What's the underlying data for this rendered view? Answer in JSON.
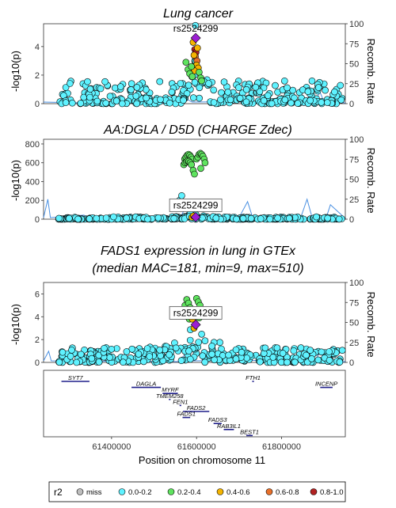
{
  "colors": {
    "r2_miss": "#bebebe",
    "r2_0_0_2": "#5ff2ff",
    "r2_0_2_0_4": "#5fe35f",
    "r2_0_4_0_6": "#f4b400",
    "r2_0_6_0_8": "#e8702a",
    "r2_0_8_1_0": "#b22222",
    "lead": "#9b1fd3",
    "recomb": "#4a90e2",
    "gene": "#1f1f8a",
    "panel_border": "#333333"
  },
  "lead_snp": "rs2524299",
  "legend": {
    "title": "r2",
    "items": [
      {
        "label": "miss",
        "color_key": "r2_miss"
      },
      {
        "label": "0.0-0.2",
        "color_key": "r2_0_0_2"
      },
      {
        "label": "0.2-0.4",
        "color_key": "r2_0_2_0_4"
      },
      {
        "label": "0.4-0.6",
        "color_key": "r2_0_4_0_6"
      },
      {
        "label": "0.6-0.8",
        "color_key": "r2_0_6_0_8"
      },
      {
        "label": "0.8-1.0",
        "color_key": "r2_0_8_1_0"
      }
    ]
  },
  "xaxis": {
    "label": "Position on chromosome 11",
    "range": [
      61240000,
      61950000
    ],
    "ticks": [
      61400000,
      61600000,
      61800000
    ],
    "tick_labels": [
      "61400000",
      "61600000",
      "61800000"
    ]
  },
  "genes": [
    {
      "name": "SYT7",
      "start": 61282000,
      "end": 61348000,
      "row": 0
    },
    {
      "name": "FTH1",
      "start": 61731000,
      "end": 61735000,
      "row": 0
    },
    {
      "name": "DAGLA",
      "start": 61447000,
      "end": 61516000,
      "row": 1
    },
    {
      "name": "INCENP",
      "start": 61891000,
      "end": 61920000,
      "row": 1
    },
    {
      "name": "MYRF",
      "start": 61520000,
      "end": 61556000,
      "row": 2
    },
    {
      "name": "TMEM258",
      "start": 61535000,
      "end": 61538000,
      "row": 3
    },
    {
      "name": "FEN1",
      "start": 61560000,
      "end": 61564000,
      "row": 4
    },
    {
      "name": "FADS2",
      "start": 61568000,
      "end": 61630000,
      "row": 5
    },
    {
      "name": "FADS1",
      "start": 61567000,
      "end": 61585000,
      "row": 6
    },
    {
      "name": "FADS3",
      "start": 61640000,
      "end": 61659000,
      "row": 7
    },
    {
      "name": "RAB3IL1",
      "start": 61664000,
      "end": 61688000,
      "row": 8
    },
    {
      "name": "BEST1",
      "start": 61717000,
      "end": 61732000,
      "row": 9
    }
  ],
  "chart_data": [
    {
      "type": "scatter",
      "title": "Lung cancer",
      "subtitle": "",
      "ylabel": "-log10(p)",
      "y2label": "Recomb. Rate",
      "ylim": [
        0,
        5.6
      ],
      "yticks": [
        0,
        2,
        4
      ],
      "y2lim": [
        0,
        100
      ],
      "y2ticks": [
        0,
        25,
        50,
        75,
        100
      ],
      "lead": {
        "name": "rs2524299",
        "x": 61598000,
        "y": 4.6
      },
      "label_pos": "above",
      "peak": {
        "hx": 61598000,
        "peak": 4.4,
        "width": 9000,
        "base_max": 1.6,
        "tail": 2.0
      },
      "groups": [
        {
          "r2": "r2_0_8_1_0",
          "points": [
            [
              61596000,
              3.8
            ],
            [
              61598500,
              3.6
            ]
          ]
        },
        {
          "r2": "r2_0_6_0_8",
          "points": [
            [
              61597000,
              3.3
            ],
            [
              61601000,
              3.0
            ]
          ]
        },
        {
          "r2": "r2_0_4_0_6",
          "points": [
            [
              61592000,
              4.3
            ],
            [
              61602000,
              3.9
            ],
            [
              61594000,
              3.4
            ],
            [
              61600000,
              2.7
            ],
            [
              61604000,
              2.5
            ],
            [
              61595000,
              2.3
            ]
          ]
        },
        {
          "r2": "r2_0_2_0_4",
          "points": [
            [
              61575000,
              2.9
            ],
            [
              61580000,
              2.4
            ],
            [
              61584000,
              2.1
            ],
            [
              61588000,
              2.6
            ],
            [
              61590000,
              1.9
            ],
            [
              61606000,
              2.2
            ],
            [
              61610000,
              1.8
            ],
            [
              61612000,
              1.6
            ]
          ]
        }
      ],
      "recomb": [
        [
          61240000,
          2
        ],
        [
          61330000,
          1
        ],
        [
          61340000,
          8
        ],
        [
          61350000,
          1
        ],
        [
          61560000,
          1
        ],
        [
          61575000,
          6
        ],
        [
          61590000,
          2
        ],
        [
          61880000,
          3
        ],
        [
          61890000,
          15
        ],
        [
          61900000,
          2
        ],
        [
          61950000,
          1
        ]
      ]
    },
    {
      "type": "scatter",
      "title": "AA:DGLA / D5D (CHARGE Zdec)",
      "subtitle": "",
      "ylabel": "-log10(p)",
      "y2label": "Recomb. Rate",
      "ylim": [
        0,
        850
      ],
      "yticks": [
        0,
        200,
        400,
        600,
        800
      ],
      "y2lim": [
        0,
        100
      ],
      "y2ticks": [
        0,
        25,
        50,
        75,
        100
      ],
      "lead": {
        "name": "rs2524299",
        "x": 61598000,
        "y": 22
      },
      "label_pos": "box",
      "peak": {
        "hx": 61598000,
        "peak": 120,
        "width": 15000,
        "base_max": 25,
        "tail": 3.0
      },
      "groups": [
        {
          "r2": "r2_0_2_0_4",
          "points": [
            [
              61572000,
              640
            ],
            [
              61575000,
              660
            ],
            [
              61578000,
              680
            ],
            [
              61581000,
              690
            ],
            [
              61584000,
              680
            ],
            [
              61587000,
              660
            ],
            [
              61590000,
              640
            ],
            [
              61570000,
              580
            ],
            [
              61573000,
              600
            ],
            [
              61576000,
              610
            ],
            [
              61579000,
              620
            ],
            [
              61582000,
              615
            ],
            [
              61585000,
              600
            ],
            [
              61588000,
              580
            ],
            [
              61600000,
              640
            ],
            [
              61603000,
              660
            ],
            [
              61606000,
              690
            ],
            [
              61609000,
              700
            ],
            [
              61612000,
              690
            ],
            [
              61615000,
              670
            ],
            [
              61618000,
              640
            ],
            [
              61620000,
              600
            ],
            [
              61592000,
              520
            ],
            [
              61595000,
              480
            ],
            [
              61610000,
              540
            ]
          ]
        },
        {
          "r2": "r2_0_4_0_6",
          "points": [
            [
              61589000,
              20
            ],
            [
              61593000,
              35
            ]
          ]
        },
        {
          "r2": "r2_0_0_2",
          "points": [
            [
              61560000,
              200
            ],
            [
              61565000,
              250
            ],
            [
              61622000,
              180
            ],
            [
              61630000,
              120
            ]
          ]
        }
      ],
      "recomb": [
        [
          61240000,
          2
        ],
        [
          61250000,
          25
        ],
        [
          61256000,
          2
        ],
        [
          61335000,
          5
        ],
        [
          61345000,
          2
        ],
        [
          61560000,
          1
        ],
        [
          61575000,
          15
        ],
        [
          61590000,
          2
        ],
        [
          61700000,
          2
        ],
        [
          61720000,
          22
        ],
        [
          61732000,
          2
        ],
        [
          61845000,
          2
        ],
        [
          61860000,
          25
        ],
        [
          61872000,
          2
        ],
        [
          61905000,
          2
        ],
        [
          61915000,
          18
        ],
        [
          61950000,
          1
        ]
      ]
    },
    {
      "type": "scatter",
      "title": "FADS1 expression in lung in GTEx",
      "subtitle": "(median MAC=181, min=9, max=510)",
      "ylabel": "-log10(p)",
      "y2label": "Recomb. Rate",
      "ylim": [
        0,
        7
      ],
      "yticks": [
        0,
        2,
        4,
        6
      ],
      "y2lim": [
        0,
        100
      ],
      "y2ticks": [
        0,
        25,
        50,
        75,
        100
      ],
      "lead": {
        "name": "rs2524299",
        "x": 61598000,
        "y": 3.3
      },
      "label_pos": "box",
      "peak": {
        "hx": 61598000,
        "peak": 2.6,
        "width": 35000,
        "base_max": 1.3,
        "tail": 1.7
      },
      "groups": [
        {
          "r2": "r2_0_2_0_4",
          "points": [
            [
              61573000,
              5.0
            ],
            [
              61577000,
              5.5
            ],
            [
              61581000,
              5.2
            ],
            [
              61585000,
              4.8
            ],
            [
              61588000,
              4.4
            ],
            [
              61592000,
              4.0
            ],
            [
              61600000,
              5.6
            ],
            [
              61604000,
              5.3
            ],
            [
              61608000,
              5.0
            ],
            [
              61612000,
              4.6
            ],
            [
              61575000,
              4.2
            ],
            [
              61579000,
              4.0
            ],
            [
              61583000,
              3.8
            ],
            [
              61602000,
              4.2
            ],
            [
              61606000,
              3.9
            ]
          ]
        },
        {
          "r2": "r2_0_4_0_6",
          "points": [
            [
              61590000,
              3.8
            ],
            [
              61594000,
              3.0
            ]
          ]
        }
      ],
      "recomb": [
        [
          61240000,
          2
        ],
        [
          61252000,
          14
        ],
        [
          61258000,
          2
        ],
        [
          61560000,
          1
        ],
        [
          61575000,
          12
        ],
        [
          61590000,
          2
        ],
        [
          61880000,
          3
        ],
        [
          61892000,
          15
        ],
        [
          61900000,
          2
        ],
        [
          61950000,
          1
        ]
      ]
    }
  ]
}
